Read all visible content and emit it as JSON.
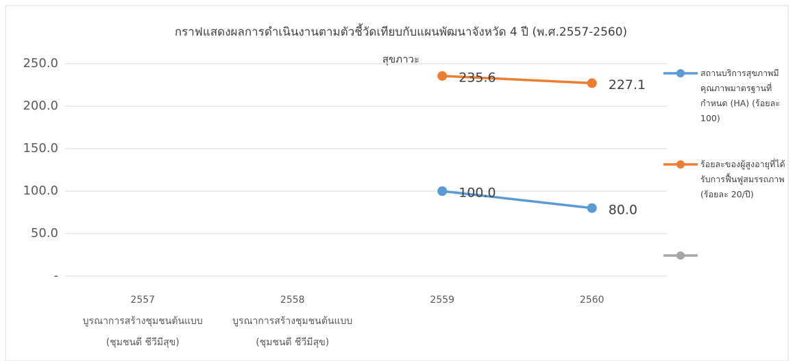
{
  "chart_data": {
    "type": "line",
    "title": "กราฟแสดงผลการดำเนินงานตามตัวชี้วัดเทียบกับแผนพัฒนาจังหวัด  4 ปี (พ.ศ.2557-2560)",
    "subtitle": "สุขภาวะ",
    "categories": [
      [
        "2557",
        "บูรณาการสร้างชุมชนต้นแบบ",
        "(ชุมชนดี ชีวีมีสุข)"
      ],
      [
        "2558",
        "บูรณาการสร้างชุมชนต้นแบบ",
        "(ชุมชนดี ชีวีมีสุข)"
      ],
      [
        "2559"
      ],
      [
        "2560"
      ]
    ],
    "series": [
      {
        "name": "สถานบริการสุขภาพมีคุณภาพมาตรฐานที่กำหนด (HA) (ร้อยละ 100)",
        "color": "#5b9bd5",
        "values": [
          null,
          null,
          100,
          80
        ],
        "value_labels": [
          null,
          null,
          "100.0",
          "80.0"
        ]
      },
      {
        "name": "ร้อยละของผู้สูงอายุที่ได้รับการฟื้นฟูสมรรถภาพ (ร้อยละ 20/ปี)",
        "color": "#ed7d31",
        "values": [
          null,
          null,
          235.6,
          227.1
        ],
        "value_labels": [
          null,
          null,
          "235.6",
          "227.1"
        ]
      },
      {
        "color": "#a5a5a5",
        "values": [
          null,
          null,
          null,
          null
        ]
      }
    ],
    "ylim": [
      0,
      250
    ],
    "yticks": [
      {
        "value": 0,
        "label": "-"
      },
      {
        "value": 50,
        "label": "50.0"
      },
      {
        "value": 100,
        "label": "100.0"
      },
      {
        "value": 150,
        "label": "150.0"
      },
      {
        "value": 200,
        "label": "200.0"
      },
      {
        "value": 250,
        "label": "250.0"
      }
    ],
    "grid": true,
    "legend": "right"
  }
}
